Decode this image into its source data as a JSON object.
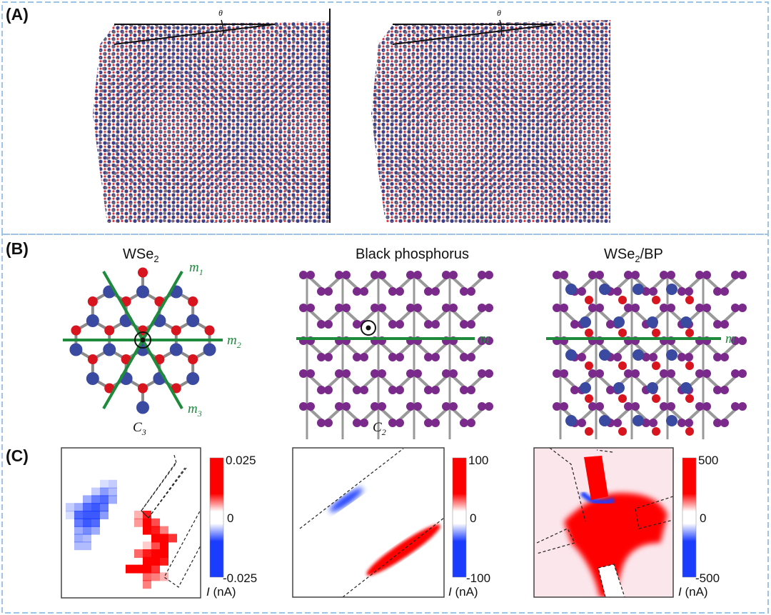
{
  "colors": {
    "frame": "#9cc3e8",
    "red": "#ff0000",
    "blue": "#1a3cff",
    "green": "#1e8a3c",
    "w_atom": "#3a4aa0",
    "se_atom": "#d8141e",
    "p_atom": "#7a2a8a"
  },
  "panel_a": {
    "label": "(A)",
    "theta_left": "θ",
    "theta_right": "θ"
  },
  "panel_b": {
    "label": "(B)",
    "wse2": {
      "title": "WSe",
      "sub": "2",
      "m1": "m",
      "m1_sub": "1",
      "m2": "m",
      "m2_sub": "2",
      "m3": "m",
      "m3_sub": "3",
      "c": "C",
      "c_sub": "3"
    },
    "bp": {
      "title": "Black phosphorus",
      "m": "m",
      "c": "C",
      "c_sub": "2"
    },
    "hetero": {
      "title_a": "WSe",
      "sub": "2",
      "title_b": "/BP",
      "m": "m"
    }
  },
  "panel_c": {
    "label": "(C)",
    "maps": [
      {
        "max": "0.025",
        "zero": "0",
        "min": "-0.025",
        "unit_i": "I",
        "unit": " (nA)"
      },
      {
        "max": "100",
        "zero": "0",
        "min": "-100",
        "unit_i": "I",
        "unit": " (nA)"
      },
      {
        "max": "500",
        "zero": "0",
        "min": "-500",
        "unit_i": "I",
        "unit": " (nA)"
      }
    ]
  }
}
